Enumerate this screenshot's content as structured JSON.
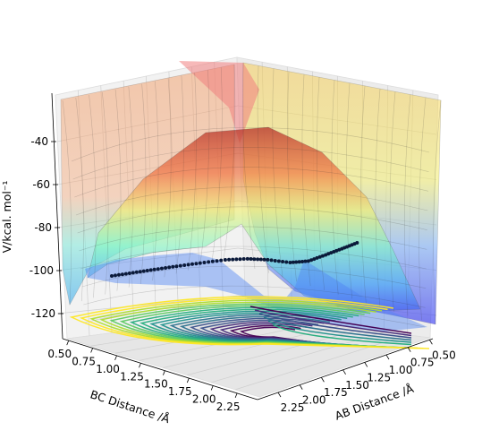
{
  "chart_data": {
    "type": "surface3d",
    "title": "",
    "xlabel": "AB Distance /Å",
    "ylabel": "BC Distance /Å",
    "zlabel": "V/kcal. mol⁻¹",
    "ab_ticks": [
      "0.50",
      "0.75",
      "1.00",
      "1.25",
      "1.50",
      "1.75",
      "2.00",
      "2.25"
    ],
    "bc_ticks": [
      "0.50",
      "0.75",
      "1.00",
      "1.25",
      "1.50",
      "1.75",
      "2.00",
      "2.25"
    ],
    "z_ticks": [
      "-40",
      "-60",
      "-80",
      "-100",
      "-120"
    ],
    "ab_range": [
      0.5,
      2.4
    ],
    "bc_range": [
      0.5,
      2.4
    ],
    "z_range": [
      -135,
      -15
    ],
    "colormap": "jet (surface, semi-transparent) / viridis (contours)",
    "grid": true,
    "surface_min_kcal": -110,
    "saddle_region_kcal": -90,
    "trajectory": {
      "description": "dark dotted reaction trajectory on surface",
      "points_ab_bc": [
        [
          2.3,
          0.74
        ],
        [
          2.1,
          0.75
        ],
        [
          1.9,
          0.76
        ],
        [
          1.7,
          0.78
        ],
        [
          1.5,
          0.82
        ],
        [
          1.3,
          0.88
        ],
        [
          1.15,
          0.97
        ],
        [
          1.05,
          1.1
        ],
        [
          0.98,
          1.3
        ],
        [
          0.95,
          1.5
        ],
        [
          0.93,
          1.7
        ],
        [
          0.92,
          1.9
        ],
        [
          0.92,
          2.1
        ]
      ]
    }
  }
}
